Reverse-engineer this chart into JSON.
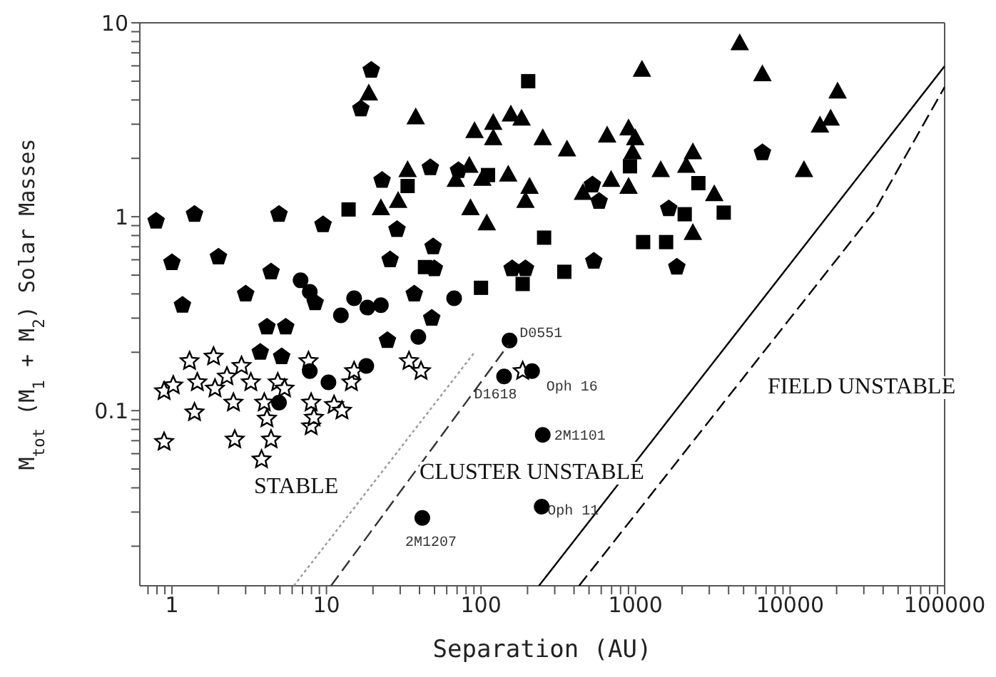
{
  "chart_data": {
    "type": "scatter",
    "xlabel": "Separation (AU)",
    "ylabel": "M$_{tot}$ (M$_{1}$ + M$_{2}$) Solar Masses",
    "log": "xy",
    "xlim": [
      0.62,
      100000
    ],
    "ylim": [
      0.0125,
      10
    ],
    "xticks": [
      {
        "value": 0.7,
        "label": null
      },
      {
        "value": 0.8,
        "label": null
      },
      {
        "value": 0.9,
        "label": null
      },
      1,
      {
        "value": 2,
        "label": null
      },
      {
        "value": 3,
        "label": null
      },
      {
        "value": 4,
        "label": null
      },
      {
        "value": 5,
        "label": null
      },
      {
        "value": 6,
        "label": null
      },
      {
        "value": 7,
        "label": null
      },
      {
        "value": 8,
        "label": null
      },
      {
        "value": 9,
        "label": null
      },
      10,
      {
        "value": 20,
        "label": null
      },
      {
        "value": 30,
        "label": null
      },
      {
        "value": 40,
        "label": null
      },
      {
        "value": 50,
        "label": null
      },
      {
        "value": 60,
        "label": null
      },
      {
        "value": 70,
        "label": null
      },
      {
        "value": 80,
        "label": null
      },
      {
        "value": 90,
        "label": null
      },
      100,
      {
        "value": 200,
        "label": null
      },
      {
        "value": 300,
        "label": null
      },
      {
        "value": 400,
        "label": null
      },
      {
        "value": 500,
        "label": null
      },
      {
        "value": 600,
        "label": null
      },
      {
        "value": 700,
        "label": null
      },
      {
        "value": 800,
        "label": null
      },
      {
        "value": 900,
        "label": null
      },
      1000,
      {
        "value": 2000,
        "label": null
      },
      {
        "value": 3000,
        "label": null
      },
      {
        "value": 4000,
        "label": null
      },
      {
        "value": 5000,
        "label": null
      },
      {
        "value": 6000,
        "label": null
      },
      {
        "value": 7000,
        "label": null
      },
      {
        "value": 8000,
        "label": null
      },
      {
        "value": 9000,
        "label": null
      },
      10000,
      {
        "value": 20000,
        "label": null
      },
      {
        "value": 30000,
        "label": null
      },
      {
        "value": 40000,
        "label": null
      },
      {
        "value": 50000,
        "label": null
      },
      {
        "value": 60000,
        "label": null
      },
      {
        "value": 70000,
        "label": null
      },
      {
        "value": 80000,
        "label": null
      },
      {
        "value": 90000,
        "label": null
      },
      100000
    ],
    "yticks": [
      {
        "value": 0.02,
        "label": null
      },
      {
        "value": 0.03,
        "label": null
      },
      {
        "value": 0.04,
        "label": null
      },
      {
        "value": 0.05,
        "label": null
      },
      {
        "value": 0.06,
        "label": null
      },
      {
        "value": 0.07,
        "label": null
      },
      {
        "value": 0.08,
        "label": null
      },
      {
        "value": 0.09,
        "label": null
      },
      0.1,
      {
        "value": 0.2,
        "label": null
      },
      {
        "value": 0.3,
        "label": null
      },
      {
        "value": 0.4,
        "label": null
      },
      {
        "value": 0.5,
        "label": null
      },
      {
        "value": 0.6,
        "label": null
      },
      {
        "value": 0.7,
        "label": null
      },
      {
        "value": 0.8,
        "label": null
      },
      {
        "value": 0.9,
        "label": null
      },
      1,
      {
        "value": 2,
        "label": null
      },
      {
        "value": 3,
        "label": null
      },
      {
        "value": 4,
        "label": null
      },
      {
        "value": 5,
        "label": null
      },
      {
        "value": 6,
        "label": null
      },
      {
        "value": 7,
        "label": null
      },
      {
        "value": 8,
        "label": null
      },
      {
        "value": 9,
        "label": null
      },
      10
    ],
    "series": [
      {
        "color": "#000000",
        "x": [
          0.79,
          1,
          1.17,
          1.4,
          2.0,
          3.0,
          4.38,
          4.93,
          9.5,
          8.45,
          22.9,
          28.6,
          25.8,
          16.7,
          19.5,
          49,
          47,
          37,
          49.9,
          71.5,
          159,
          194,
          526,
          581,
          1640,
          1850,
          537,
          6620,
          24.8,
          48,
          5.45,
          4.12,
          3.73,
          5.13
        ],
        "values": [
          0.95,
          0.58,
          0.35,
          1.03,
          0.62,
          0.4,
          0.52,
          1.03,
          0.91,
          0.36,
          1.54,
          0.86,
          0.6,
          3.6,
          5.7,
          0.7,
          1.79,
          0.4,
          0.54,
          1.73,
          0.54,
          0.54,
          1.46,
          1.2,
          1.1,
          0.55,
          0.59,
          2.14,
          0.23,
          0.3,
          0.27,
          0.27,
          0.2,
          0.19
        ]
      },
      {
        "marker": "circle",
        "color": "#000000",
        "x": [
          6.8,
          7.8,
          12.4,
          15.1,
          18.4,
          22.5,
          39.3,
          67,
          153
        ],
        "values": [
          0.47,
          0.41,
          0.31,
          0.38,
          0.34,
          0.35,
          0.24,
          0.38,
          0.23
        ]
      },
      {
        "marker": "square",
        "color": "#000000",
        "x": [
          13.9,
          33.5,
          43.4,
          100,
          111,
          186,
          202,
          256,
          346,
          920,
          1120,
          1577,
          2080,
          2550,
          3720
        ],
        "values": [
          1.09,
          1.44,
          0.55,
          0.43,
          1.64,
          0.45,
          5.0,
          0.78,
          0.52,
          1.82,
          0.74,
          0.74,
          1.03,
          1.49,
          1.05
        ]
      },
      {
        "marker": "triangle",
        "color": "#000000",
        "x": [
          18.8,
          37.8,
          90.8,
          120,
          120,
          156,
          183,
          251,
          360,
          655,
          901,
          995,
          957,
          1455,
          2130,
          2350,
          695,
          901,
          457,
          206,
          194,
          3230,
          2350,
          12300,
          4720,
          1100,
          6620,
          20300,
          18300,
          15600,
          22.5,
          29.1,
          33.5,
          68.7,
          84,
          102,
          85.5,
          109,
          150
        ],
        "values": [
          4.3,
          3.24,
          2.75,
          3.03,
          2.53,
          3.35,
          3.19,
          2.53,
          2.21,
          2.61,
          2.84,
          2.53,
          2.14,
          1.73,
          1.82,
          2.14,
          1.54,
          1.42,
          1.32,
          1.42,
          1.2,
          1.3,
          0.82,
          1.73,
          7.8,
          5.7,
          5.4,
          4.4,
          3.19,
          2.94,
          1.1,
          1.2,
          1.73,
          1.54,
          1.82,
          1.56,
          1.1,
          0.92,
          1.64
        ]
      },
      {
        "marker": "star",
        "color": "#000000",
        "x": [
          0.89,
          1.02,
          0.89,
          1.3,
          1.4,
          1.46,
          1.86,
          1.9,
          2.27,
          2.5,
          2.55,
          2.82,
          3.24,
          3.8,
          3.96,
          4.12,
          4.38,
          4.84,
          5.35,
          7.65,
          7.96,
          7.96,
          8.3,
          11.2,
          12.6,
          14.5,
          15.1,
          34.2,
          40.9,
          186
        ],
        "values": [
          0.126,
          0.135,
          0.069,
          0.18,
          0.098,
          0.14,
          0.19,
          0.13,
          0.15,
          0.11,
          0.071,
          0.17,
          0.14,
          0.056,
          0.11,
          0.091,
          0.071,
          0.14,
          0.13,
          0.18,
          0.11,
          0.083,
          0.092,
          0.107,
          0.1,
          0.14,
          0.16,
          0.18,
          0.16,
          0.16
        ]
      },
      {
        "marker": "circle",
        "color": "#000000",
        "x": [
          7.8,
          10.3,
          4.93,
          18.1,
          41.7,
          141,
          214,
          251,
          247
        ],
        "values": [
          0.16,
          0.14,
          0.11,
          0.17,
          0.028,
          0.15,
          0.16,
          0.075,
          0.032
        ]
      },
      {
        "type": "line",
        "line_style": "dotted",
        "color": "#999999",
        "x": [
          6.15,
          90.8
        ],
        "values": [
          0.0125,
          0.2
        ]
      },
      {
        "type": "line",
        "line_style": "dashed",
        "color": "#333333",
        "x": [
          10.7,
          150
        ],
        "values": [
          0.0125,
          0.218
        ]
      },
      {
        "type": "line",
        "line_style": "solid",
        "color": "#000000",
        "x": [
          237,
          100000
        ],
        "values": [
          0.0125,
          5.98
        ]
      },
      {
        "type": "line",
        "line_style": "dashed",
        "color": "#000000",
        "x": [
          431,
          34700,
          100000
        ],
        "values": [
          0.0125,
          1.05,
          4.67
        ]
      }
    ],
    "annotations": [
      "STABLE",
      "CLUSTER UNSTABLE",
      "FIELD UNSTABLE",
      {
        "text": "D0551",
        "x": 153,
        "y": 0.23
      },
      {
        "text": "D1618",
        "x": 141,
        "y": 0.15
      },
      {
        "text": "Oph 16",
        "x": 214,
        "y": 0.16
      },
      {
        "text": "2M1101",
        "x": 251,
        "y": 0.075
      },
      {
        "text": "Oph 11",
        "x": 247,
        "y": 0.032
      },
      {
        "text": "2M1207",
        "x": 41.7,
        "y": 0.028
      }
    ]
  }
}
